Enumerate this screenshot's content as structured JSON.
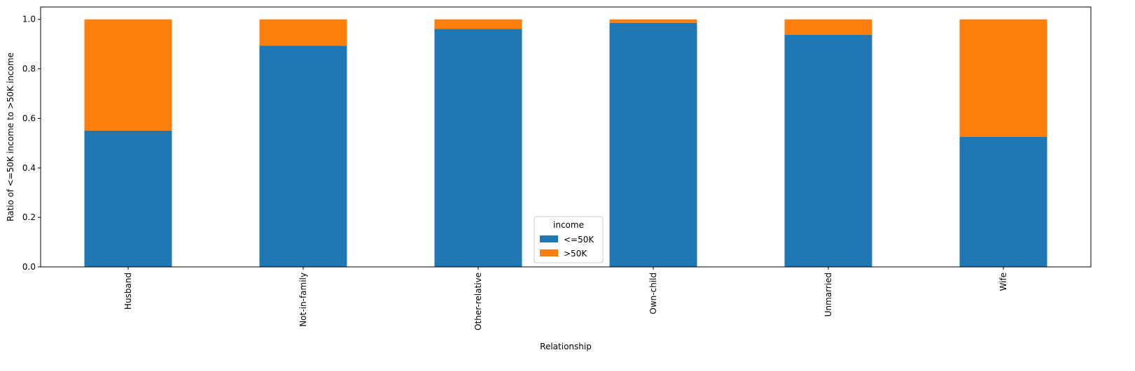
{
  "chart_data": {
    "type": "bar",
    "stacked": true,
    "categories": [
      "Husband",
      "Not-in-family",
      "Other-relative",
      "Own-child",
      "Unmarried",
      "Wife"
    ],
    "series": [
      {
        "name": "<=50K",
        "color": "#1f77b4",
        "values": [
          0.551,
          0.894,
          0.961,
          0.986,
          0.937,
          0.525
        ]
      },
      {
        "name": ">50K",
        "color": "#ff7f0e",
        "values": [
          0.449,
          0.106,
          0.039,
          0.014,
          0.063,
          0.475
        ]
      }
    ],
    "xlabel": "Relationship",
    "ylabel": "Ratio of <=50K income to >50K income",
    "ylim": [
      0,
      1.05
    ],
    "yticks": [
      "0.0",
      "0.2",
      "0.4",
      "0.6",
      "0.8",
      "1.0"
    ],
    "grid": false,
    "legend": {
      "title": "income",
      "placement": "bottom-center"
    }
  }
}
